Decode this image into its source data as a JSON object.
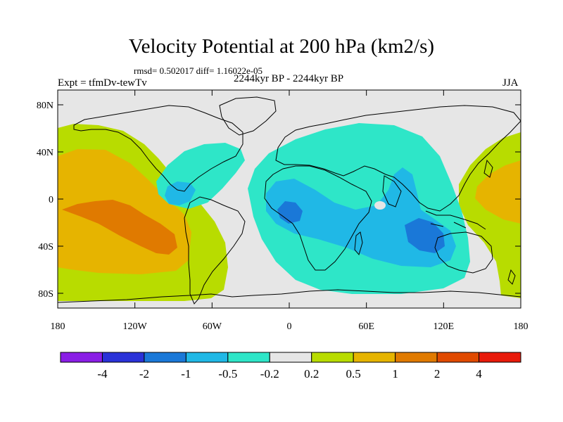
{
  "header": {
    "title": "Velocity Potential at 200 hPa (km2/s)",
    "stats": "rmsd= 0.502017 diff= 1.16022e-05",
    "experiment": "Expt = tfmDv-tewTv",
    "period": "2244kyr BP - 2244kyr BP",
    "season": "JJA"
  },
  "axes": {
    "lat_ticks": [
      "80N",
      "40N",
      "0",
      "40S",
      "80S"
    ],
    "lon_ticks": [
      "180",
      "120W",
      "60W",
      "0",
      "60E",
      "120E",
      "180"
    ]
  },
  "colorbar": {
    "colors": [
      "#8a1ee6",
      "#2a32d8",
      "#1a78d8",
      "#20b8e6",
      "#2ee6c8",
      "#e6e6e6",
      "#b8dc00",
      "#e6b400",
      "#e07a00",
      "#e04a00",
      "#e81a0a"
    ],
    "labels": [
      "-4",
      "-2",
      "-1",
      "-0.5",
      "-0.2",
      "0.2",
      "0.5",
      "1",
      "2",
      "4"
    ]
  },
  "map_colors": {
    "background": "#e6e6e6",
    "coastline": "#000000"
  }
}
